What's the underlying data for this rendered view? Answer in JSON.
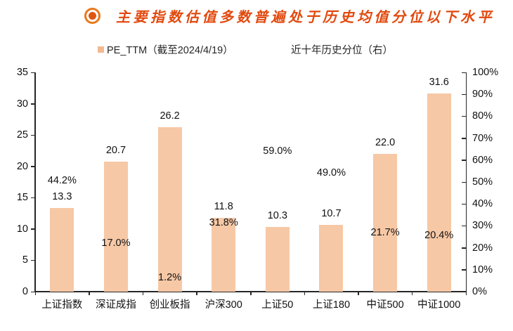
{
  "title": {
    "text": "主要指数估值多数普遍处于历史均值分位以下水平"
  },
  "colors": {
    "title": "#e2490e",
    "icon_ring": "#e8791c",
    "icon_dot": "#e05410",
    "bar": "#f6c8a6",
    "axis": "#262626",
    "label": "#111111"
  },
  "legend": {
    "items": [
      {
        "label": "PE_TTM（截至2024/4/19）",
        "has_swatch": true
      },
      {
        "label": "近十年历史分位（右）",
        "has_swatch": false
      }
    ]
  },
  "chart_data": {
    "type": "bar",
    "title": "主要指数估值多数普遍处于历史均值分位以下水平",
    "categories": [
      "上证指数",
      "深证成指",
      "创业板指",
      "沪深300",
      "上证50",
      "上证180",
      "中证500",
      "中证1000"
    ],
    "series": [
      {
        "name": "PE_TTM（截至2024/4/19）",
        "type": "bar",
        "axis": "left",
        "values": [
          13.3,
          20.7,
          26.2,
          11.8,
          10.3,
          10.7,
          22.0,
          31.6
        ],
        "labels": [
          "13.3",
          "20.7",
          "26.2",
          "11.8",
          "10.3",
          "10.7",
          "22.0",
          "31.6"
        ]
      },
      {
        "name": "近十年历史分位（右）",
        "type": "point-label",
        "axis": "right",
        "values": [
          44.2,
          17.0,
          1.2,
          31.8,
          59.0,
          49.0,
          21.7,
          20.4
        ],
        "labels": [
          "44.2%",
          "17.0%",
          "1.2%",
          "31.8%",
          "59.0%",
          "49.0%",
          "21.7%",
          "20.4%"
        ]
      }
    ],
    "left_axis": {
      "min": 0,
      "max": 35,
      "step": 5,
      "tick_labels": [
        "0",
        "5",
        "10",
        "15",
        "20",
        "25",
        "30",
        "35"
      ]
    },
    "right_axis": {
      "min": 0,
      "max": 100,
      "step": 10,
      "tick_labels": [
        "0%",
        "10%",
        "20%",
        "30%",
        "40%",
        "50%",
        "60%",
        "70%",
        "80%",
        "90%",
        "100%"
      ]
    },
    "grid": false,
    "legend_position": "top"
  }
}
